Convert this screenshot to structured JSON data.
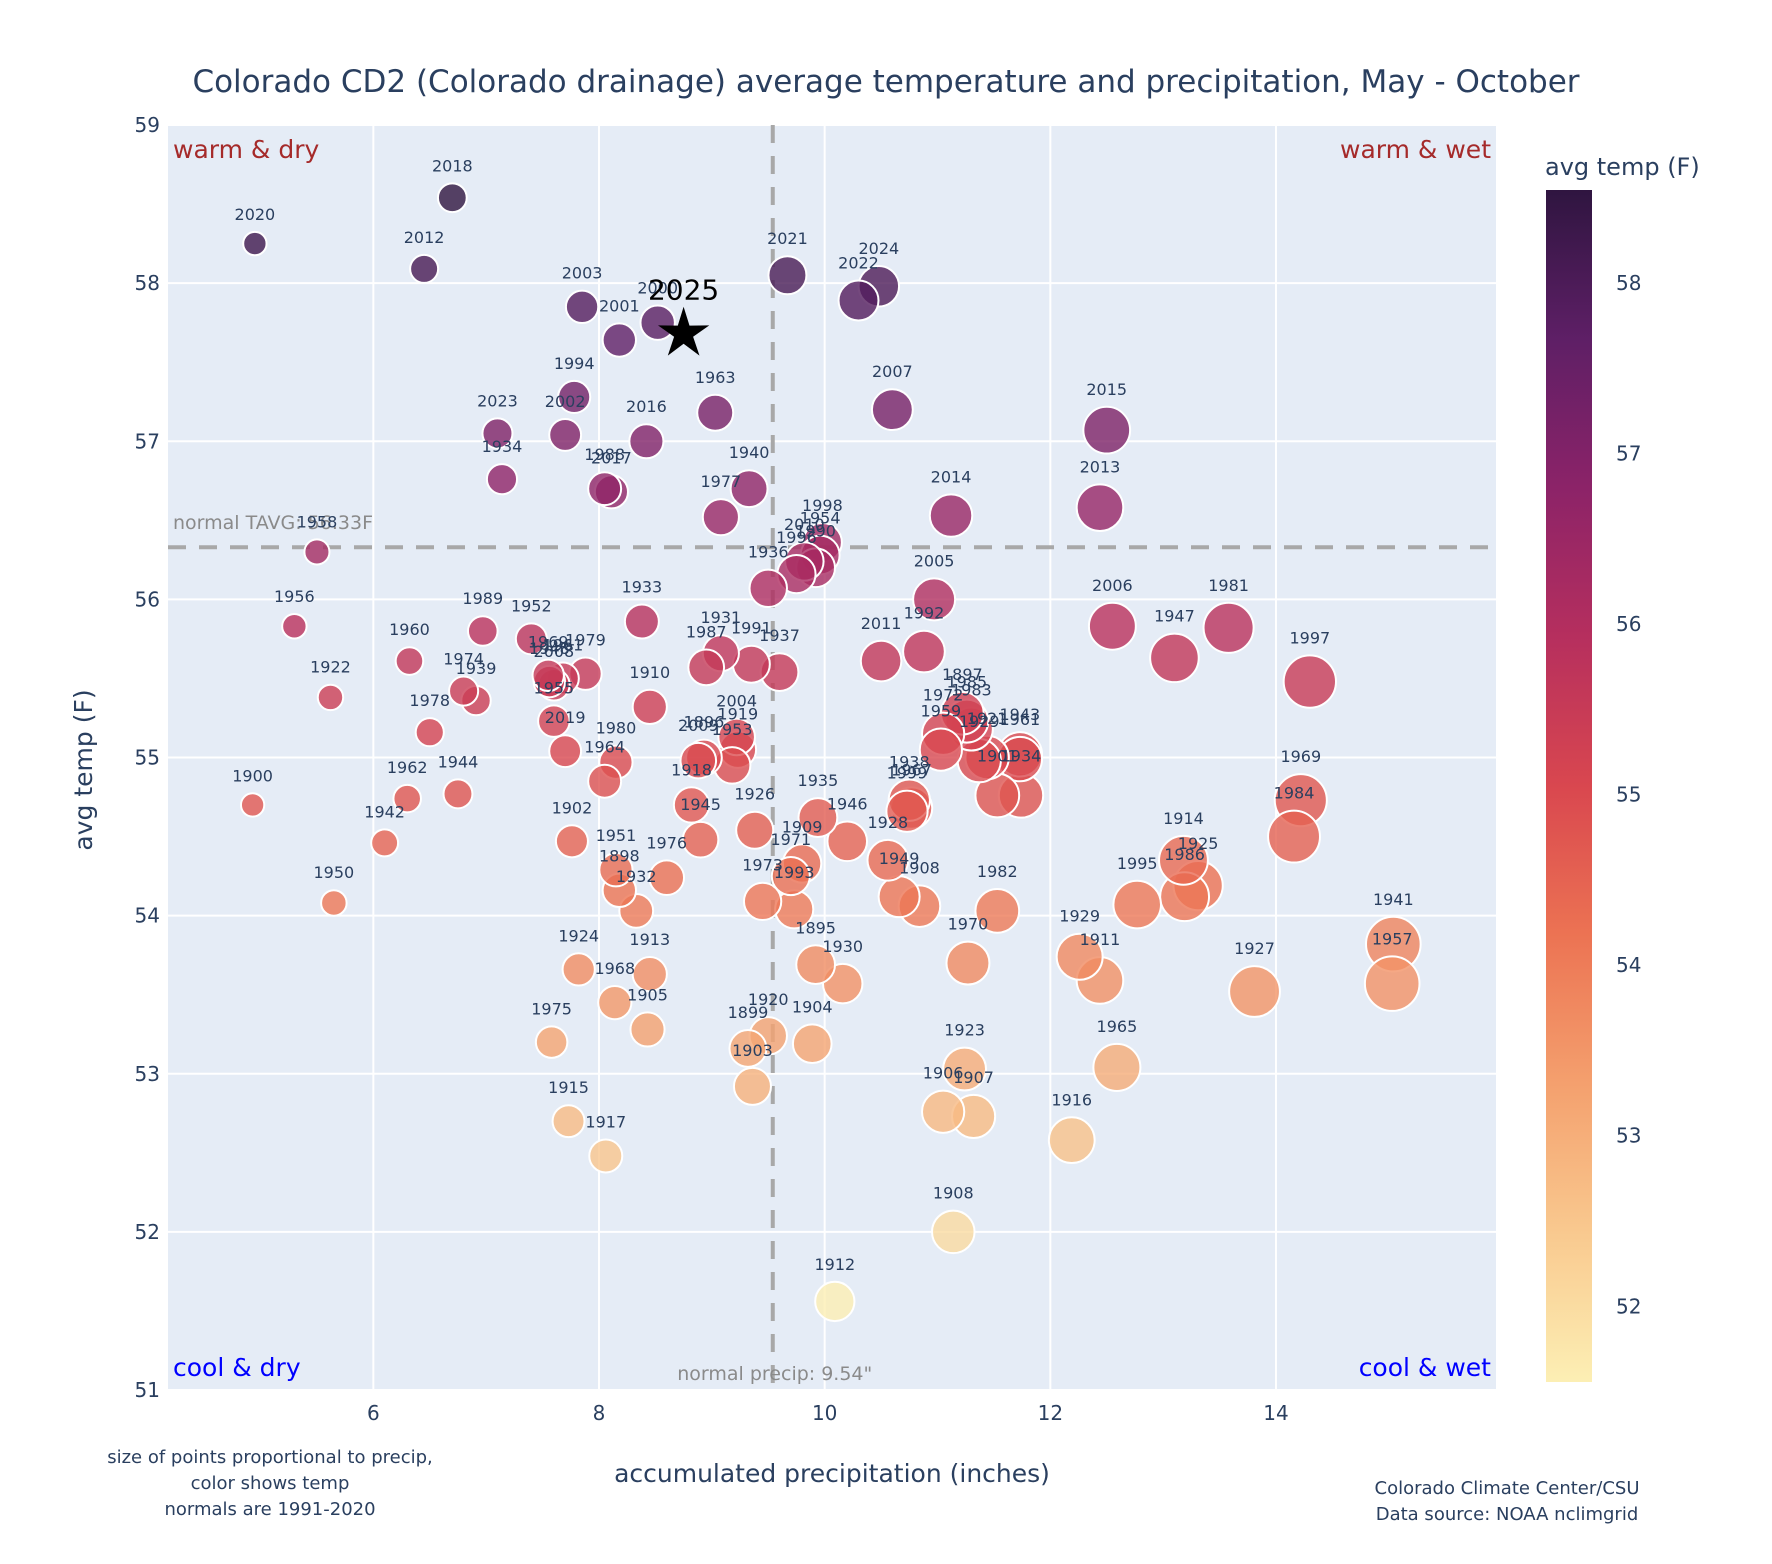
{
  "chart_data": {
    "type": "scatter",
    "title": "Colorado CD2 (Colorado drainage) average temperature and precipitation, May - October",
    "xlabel": "accumulated precipitation (inches)",
    "ylabel": "avg temp (F)",
    "xlim": [
      4.18,
      15.95
    ],
    "ylim": [
      51,
      59
    ],
    "xticks": [
      6,
      8,
      10,
      12,
      14
    ],
    "yticks": [
      51,
      52,
      53,
      54,
      55,
      56,
      57,
      58,
      59
    ],
    "grid": true,
    "colorbar": {
      "title": "avg temp (F)",
      "range": [
        51.55,
        58.54
      ],
      "ticks": [
        52,
        53,
        54,
        55,
        56,
        57,
        58
      ],
      "colorscale": [
        "#fcefb4",
        "#f9c98f",
        "#f4a06e",
        "#ec7353",
        "#d9474f",
        "#b62f5e",
        "#8c2368",
        "#5e1f66",
        "#2f1540"
      ]
    },
    "size_encoding": "precip",
    "normals": {
      "precip": 9.54,
      "temp": 56.33,
      "precip_label": "normal precip: 9.54\"",
      "temp_label": "normal TAVG: 56.33F"
    },
    "quadrant_labels": {
      "top_left": "warm & dry",
      "top_right": "warm & wet",
      "bottom_left": "cool & dry",
      "bottom_right": "cool & wet"
    },
    "quadrant_colors": {
      "warm": "#a52a2a",
      "cool": "#0000ff"
    },
    "highlight": {
      "label": "2025",
      "x": 8.75,
      "y": 57.68,
      "marker": "star"
    },
    "footnote_left": [
      "size of points proportional to precip,",
      "color shows temp",
      "normals are 1991-2020"
    ],
    "footnote_right": [
      "Colorado Climate Center/CSU",
      "Data source: NOAA nclimgrid"
    ],
    "points": [
      {
        "year": "2020",
        "x": 4.95,
        "y": 58.25
      },
      {
        "year": "2018",
        "x": 6.7,
        "y": 58.54
      },
      {
        "year": "2012",
        "x": 6.45,
        "y": 58.09
      },
      {
        "year": "2003",
        "x": 7.85,
        "y": 57.85
      },
      {
        "year": "2001",
        "x": 8.18,
        "y": 57.64
      },
      {
        "year": "2000",
        "x": 8.52,
        "y": 57.75
      },
      {
        "year": "1994",
        "x": 7.78,
        "y": 57.28
      },
      {
        "year": "2002",
        "x": 7.7,
        "y": 57.04
      },
      {
        "year": "2023",
        "x": 7.1,
        "y": 57.05
      },
      {
        "year": "1934",
        "x": 7.14,
        "y": 56.76
      },
      {
        "year": "2016",
        "x": 8.42,
        "y": 57.0
      },
      {
        "year": "1988",
        "x": 8.05,
        "y": 56.7
      },
      {
        "year": "2017",
        "x": 8.11,
        "y": 56.68
      },
      {
        "year": "1963",
        "x": 9.03,
        "y": 57.18
      },
      {
        "year": "1940",
        "x": 9.33,
        "y": 56.7
      },
      {
        "year": "1977",
        "x": 9.08,
        "y": 56.52
      },
      {
        "year": "2021",
        "x": 9.67,
        "y": 58.05
      },
      {
        "year": "2022",
        "x": 10.3,
        "y": 57.89
      },
      {
        "year": "2024",
        "x": 10.48,
        "y": 57.98
      },
      {
        "year": "2007",
        "x": 10.6,
        "y": 57.2
      },
      {
        "year": "2015",
        "x": 12.5,
        "y": 57.07
      },
      {
        "year": "2013",
        "x": 12.44,
        "y": 56.58
      },
      {
        "year": "2014",
        "x": 11.12,
        "y": 56.53
      },
      {
        "year": "1998",
        "x": 9.98,
        "y": 56.36
      },
      {
        "year": "2010",
        "x": 9.82,
        "y": 56.24
      },
      {
        "year": "1954",
        "x": 9.96,
        "y": 56.28
      },
      {
        "year": "1990",
        "x": 9.92,
        "y": 56.2
      },
      {
        "year": "1996",
        "x": 9.75,
        "y": 56.16
      },
      {
        "year": "1936",
        "x": 9.5,
        "y": 56.07
      },
      {
        "year": "1958",
        "x": 5.5,
        "y": 56.3
      },
      {
        "year": "1956",
        "x": 5.3,
        "y": 55.83
      },
      {
        "year": "1922",
        "x": 5.62,
        "y": 55.38
      },
      {
        "year": "1960",
        "x": 6.32,
        "y": 55.61
      },
      {
        "year": "1989",
        "x": 6.97,
        "y": 55.8
      },
      {
        "year": "1952",
        "x": 7.4,
        "y": 55.75
      },
      {
        "year": "1974",
        "x": 6.8,
        "y": 55.42
      },
      {
        "year": "1939",
        "x": 6.91,
        "y": 55.36
      },
      {
        "year": "1978",
        "x": 6.5,
        "y": 55.16
      },
      {
        "year": "1969b",
        "x": 7.55,
        "y": 55.52
      },
      {
        "year": "2008",
        "x": 7.6,
        "y": 55.46
      },
      {
        "year": "1961b",
        "x": 7.68,
        "y": 55.5
      },
      {
        "year": "1979",
        "x": 7.88,
        "y": 55.53
      },
      {
        "year": "1948",
        "x": 7.56,
        "y": 55.48
      },
      {
        "year": "1955",
        "x": 7.6,
        "y": 55.23
      },
      {
        "year": "2019",
        "x": 7.7,
        "y": 55.04
      },
      {
        "year": "1933",
        "x": 8.38,
        "y": 55.86
      },
      {
        "year": "1910",
        "x": 8.45,
        "y": 55.32
      },
      {
        "year": "1931",
        "x": 9.08,
        "y": 55.66
      },
      {
        "year": "1987",
        "x": 8.95,
        "y": 55.57
      },
      {
        "year": "1991",
        "x": 9.35,
        "y": 55.59
      },
      {
        "year": "1937",
        "x": 9.6,
        "y": 55.54
      },
      {
        "year": "2004",
        "x": 9.22,
        "y": 55.13
      },
      {
        "year": "2009",
        "x": 8.88,
        "y": 54.98
      },
      {
        "year": "1896",
        "x": 8.93,
        "y": 55.0
      },
      {
        "year": "1919",
        "x": 9.23,
        "y": 55.05
      },
      {
        "year": "1953",
        "x": 9.18,
        "y": 54.95
      },
      {
        "year": "1918",
        "x": 8.82,
        "y": 54.7
      },
      {
        "year": "1945",
        "x": 8.9,
        "y": 54.48
      },
      {
        "year": "1926",
        "x": 9.38,
        "y": 54.54
      },
      {
        "year": "1980",
        "x": 8.15,
        "y": 54.97
      },
      {
        "year": "1964",
        "x": 8.05,
        "y": 54.85
      },
      {
        "year": "1900",
        "x": 4.93,
        "y": 54.7
      },
      {
        "year": "1962",
        "x": 6.3,
        "y": 54.74
      },
      {
        "year": "1944",
        "x": 6.75,
        "y": 54.77
      },
      {
        "year": "1942",
        "x": 6.1,
        "y": 54.46
      },
      {
        "year": "1950",
        "x": 5.65,
        "y": 54.08
      },
      {
        "year": "1902",
        "x": 7.76,
        "y": 54.47
      },
      {
        "year": "1951",
        "x": 8.15,
        "y": 54.29
      },
      {
        "year": "1898",
        "x": 8.18,
        "y": 54.16
      },
      {
        "year": "1976",
        "x": 8.6,
        "y": 54.24
      },
      {
        "year": "1932",
        "x": 8.33,
        "y": 54.03
      },
      {
        "year": "1924",
        "x": 7.82,
        "y": 53.66
      },
      {
        "year": "1913",
        "x": 8.45,
        "y": 53.63
      },
      {
        "year": "1968",
        "x": 8.14,
        "y": 53.45
      },
      {
        "year": "1905",
        "x": 8.43,
        "y": 53.28
      },
      {
        "year": "1975",
        "x": 7.58,
        "y": 53.2
      },
      {
        "year": "1915",
        "x": 7.73,
        "y": 52.7
      },
      {
        "year": "1917",
        "x": 8.06,
        "y": 52.48
      },
      {
        "year": "1935",
        "x": 9.94,
        "y": 54.62
      },
      {
        "year": "1946",
        "x": 10.2,
        "y": 54.47
      },
      {
        "year": "1909",
        "x": 9.8,
        "y": 54.33
      },
      {
        "year": "1973",
        "x": 9.45,
        "y": 54.09
      },
      {
        "year": "1971",
        "x": 9.7,
        "y": 54.25
      },
      {
        "year": "1993",
        "x": 9.73,
        "y": 54.04
      },
      {
        "year": "1895",
        "x": 9.92,
        "y": 53.69
      },
      {
        "year": "1930",
        "x": 10.16,
        "y": 53.57
      },
      {
        "year": "1899",
        "x": 9.32,
        "y": 53.16
      },
      {
        "year": "1920",
        "x": 9.5,
        "y": 53.24
      },
      {
        "year": "1903",
        "x": 9.36,
        "y": 52.92
      },
      {
        "year": "1904",
        "x": 9.89,
        "y": 53.19
      },
      {
        "year": "1967",
        "x": 10.77,
        "y": 54.68
      },
      {
        "year": "1938",
        "x": 10.75,
        "y": 54.73
      },
      {
        "year": "1999",
        "x": 10.73,
        "y": 54.66
      },
      {
        "year": "1928",
        "x": 10.56,
        "y": 54.35
      },
      {
        "year": "1949",
        "x": 10.66,
        "y": 54.12
      },
      {
        "year": "1908b",
        "x": 10.84,
        "y": 54.06
      },
      {
        "year": "1912",
        "x": 10.09,
        "y": 51.56
      },
      {
        "year": "2011",
        "x": 10.5,
        "y": 55.61
      },
      {
        "year": "1992",
        "x": 10.88,
        "y": 55.67
      },
      {
        "year": "2005",
        "x": 10.97,
        "y": 56.0
      },
      {
        "year": "1897",
        "x": 11.22,
        "y": 55.28
      },
      {
        "year": "1972",
        "x": 11.05,
        "y": 55.15
      },
      {
        "year": "1959",
        "x": 11.03,
        "y": 55.05
      },
      {
        "year": "1985",
        "x": 11.26,
        "y": 55.23
      },
      {
        "year": "1983",
        "x": 11.3,
        "y": 55.18
      },
      {
        "year": "1943",
        "x": 11.73,
        "y": 55.02
      },
      {
        "year": "1921",
        "x": 11.44,
        "y": 55.0
      },
      {
        "year": "1929b",
        "x": 11.37,
        "y": 54.98
      },
      {
        "year": "1961",
        "x": 11.73,
        "y": 54.99
      },
      {
        "year": "1901",
        "x": 11.53,
        "y": 54.76
      },
      {
        "year": "1934b",
        "x": 11.74,
        "y": 54.76
      },
      {
        "year": "1970",
        "x": 11.27,
        "y": 53.7
      },
      {
        "year": "1982",
        "x": 11.53,
        "y": 54.03
      },
      {
        "year": "1923",
        "x": 11.24,
        "y": 53.03
      },
      {
        "year": "1906",
        "x": 11.05,
        "y": 52.76
      },
      {
        "year": "1907",
        "x": 11.32,
        "y": 52.73
      },
      {
        "year": "1908",
        "x": 11.14,
        "y": 52.0
      },
      {
        "year": "1916",
        "x": 12.19,
        "y": 52.58
      },
      {
        "year": "1929",
        "x": 12.26,
        "y": 53.74
      },
      {
        "year": "1911",
        "x": 12.44,
        "y": 53.59
      },
      {
        "year": "1965",
        "x": 12.59,
        "y": 53.04
      },
      {
        "year": "1995",
        "x": 12.77,
        "y": 54.07
      },
      {
        "year": "1914",
        "x": 13.18,
        "y": 54.35
      },
      {
        "year": "1986",
        "x": 13.19,
        "y": 54.12
      },
      {
        "year": "1925",
        "x": 13.31,
        "y": 54.19
      },
      {
        "year": "1927",
        "x": 13.81,
        "y": 53.52
      },
      {
        "year": "2006",
        "x": 12.55,
        "y": 55.83
      },
      {
        "year": "1947",
        "x": 13.1,
        "y": 55.63
      },
      {
        "year": "1981",
        "x": 13.58,
        "y": 55.82
      },
      {
        "year": "1997",
        "x": 14.3,
        "y": 55.48
      },
      {
        "year": "1969",
        "x": 14.22,
        "y": 54.73
      },
      {
        "year": "1984",
        "x": 14.16,
        "y": 54.5
      },
      {
        "year": "1941",
        "x": 15.04,
        "y": 53.82
      },
      {
        "year": "1957",
        "x": 15.03,
        "y": 53.57
      }
    ]
  }
}
